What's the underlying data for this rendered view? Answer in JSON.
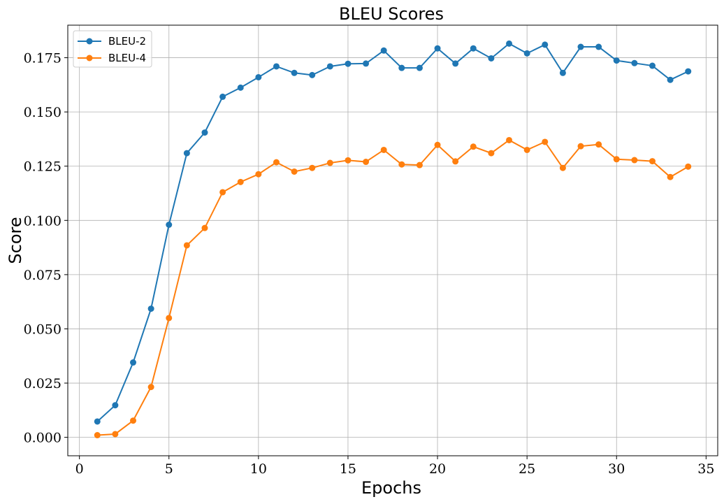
{
  "chart_data": {
    "type": "line",
    "title": "BLEU Scores",
    "xlabel": "Epochs",
    "ylabel": "Score",
    "xlim": [
      -0.65,
      35.65
    ],
    "ylim": [
      -0.0085,
      0.19
    ],
    "xticks": [
      0,
      5,
      10,
      15,
      20,
      25,
      30,
      35
    ],
    "yticks": [
      0.0,
      0.025,
      0.05,
      0.075,
      0.1,
      0.125,
      0.15,
      0.175
    ],
    "ytick_labels": [
      "0.000",
      "0.025",
      "0.050",
      "0.075",
      "0.100",
      "0.125",
      "0.150",
      "0.175"
    ],
    "grid": true,
    "legend_position": "top-left",
    "x": [
      1,
      2,
      3,
      4,
      5,
      6,
      7,
      8,
      9,
      10,
      11,
      12,
      13,
      14,
      15,
      16,
      17,
      18,
      19,
      20,
      21,
      22,
      23,
      24,
      25,
      26,
      27,
      28,
      29,
      30,
      31,
      32,
      33,
      34
    ],
    "series": [
      {
        "name": "BLEU-2",
        "color": "#1f77b4",
        "values": [
          0.0073,
          0.0148,
          0.0345,
          0.0593,
          0.098,
          0.131,
          0.1405,
          0.157,
          0.1612,
          0.166,
          0.171,
          0.168,
          0.167,
          0.171,
          0.1722,
          0.1723,
          0.1783,
          0.1703,
          0.1703,
          0.1793,
          0.1723,
          0.1793,
          0.1747,
          0.1815,
          0.177,
          0.181,
          0.168,
          0.18,
          0.18,
          0.1737,
          0.1725,
          0.1713,
          0.1648,
          0.1687
        ]
      },
      {
        "name": "BLEU-4",
        "color": "#ff7f0e",
        "values": [
          0.001,
          0.0015,
          0.0077,
          0.0232,
          0.055,
          0.0885,
          0.0965,
          0.113,
          0.1177,
          0.1213,
          0.1268,
          0.1225,
          0.1242,
          0.1265,
          0.1277,
          0.127,
          0.1325,
          0.1258,
          0.1255,
          0.1348,
          0.1272,
          0.134,
          0.131,
          0.137,
          0.1325,
          0.1362,
          0.1242,
          0.1342,
          0.135,
          0.1282,
          0.1278,
          0.1273,
          0.12,
          0.1248
        ]
      }
    ]
  }
}
